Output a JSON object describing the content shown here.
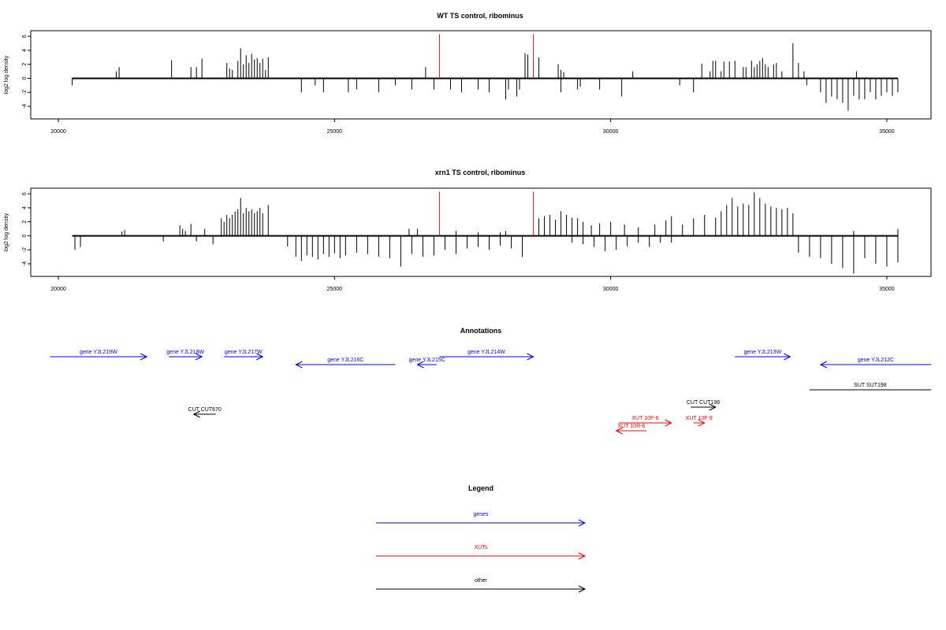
{
  "chart_data": [
    {
      "type": "bar",
      "title": "WT TS control, ribominus",
      "xlabel": "",
      "ylabel": "log2 log density",
      "xlim": [
        19500,
        35800
      ],
      "ylim": [
        -5.8,
        6.8
      ],
      "xticks": [
        20000,
        25000,
        30000,
        35000
      ],
      "yticks": [
        6,
        4,
        2,
        0,
        -2,
        -4
      ],
      "grid": false,
      "series": [
        {
          "values_plus": [
            [
              21050,
              1.0
            ],
            [
              21100,
              1.6
            ],
            [
              22050,
              2.6
            ],
            [
              22400,
              1.6
            ],
            [
              22500,
              1.6
            ],
            [
              22600,
              2.8
            ],
            [
              23050,
              2.2
            ],
            [
              23100,
              1.4
            ],
            [
              23150,
              1.2
            ],
            [
              23250,
              2.5
            ],
            [
              23300,
              4.3
            ],
            [
              23350,
              2.0
            ],
            [
              23400,
              3.3
            ],
            [
              23450,
              2.2
            ],
            [
              23500,
              3.5
            ],
            [
              23550,
              2.7
            ],
            [
              23600,
              2.9
            ],
            [
              23650,
              2.2
            ],
            [
              23700,
              2.8
            ],
            [
              23750,
              1.2
            ],
            [
              23800,
              3.0
            ],
            [
              26650,
              1.6
            ],
            [
              28450,
              3.6
            ],
            [
              28500,
              3.4
            ],
            [
              28600,
              2.4
            ],
            [
              28700,
              3.0
            ],
            [
              29050,
              2.0
            ],
            [
              29100,
              1.2
            ],
            [
              29150,
              0.9
            ],
            [
              30400,
              1.0
            ],
            [
              31650,
              2.1
            ],
            [
              31800,
              1.0
            ],
            [
              31850,
              2.5
            ],
            [
              31900,
              2.5
            ],
            [
              32000,
              1.0
            ],
            [
              32050,
              2.4
            ],
            [
              32150,
              2.4
            ],
            [
              32250,
              2.5
            ],
            [
              32400,
              1.6
            ],
            [
              32450,
              1.6
            ],
            [
              32550,
              2.5
            ],
            [
              32600,
              1.6
            ],
            [
              32650,
              2.0
            ],
            [
              32700,
              2.5
            ],
            [
              32750,
              2.9
            ],
            [
              32800,
              2.0
            ],
            [
              32850,
              1.6
            ],
            [
              32950,
              2.0
            ],
            [
              33000,
              2.2
            ],
            [
              33100,
              1.0
            ],
            [
              33300,
              5.0
            ],
            [
              33400,
              2.2
            ],
            [
              33500,
              1.0
            ],
            [
              34450,
              1.0
            ]
          ],
          "values_minus": [
            [
              20250,
              -1.0
            ],
            [
              24400,
              -2.0
            ],
            [
              24650,
              -1.0
            ],
            [
              24800,
              -2.0
            ],
            [
              25250,
              -2.0
            ],
            [
              25400,
              -1.6
            ],
            [
              25800,
              -2.0
            ],
            [
              26100,
              -1.0
            ],
            [
              26400,
              -1.6
            ],
            [
              26800,
              -1.6
            ],
            [
              27100,
              -1.6
            ],
            [
              27300,
              -2.0
            ],
            [
              27600,
              -1.6
            ],
            [
              27800,
              -2.0
            ],
            [
              28100,
              -3.0
            ],
            [
              28150,
              -1.6
            ],
            [
              28300,
              -2.6
            ],
            [
              28350,
              -1.6
            ],
            [
              29100,
              -2.0
            ],
            [
              29400,
              -1.6
            ],
            [
              29450,
              -1.2
            ],
            [
              29800,
              -1.6
            ],
            [
              30200,
              -2.6
            ],
            [
              31250,
              -1.0
            ],
            [
              31500,
              -2.0
            ],
            [
              33550,
              -1.0
            ],
            [
              33800,
              -2.0
            ],
            [
              33900,
              -3.5
            ],
            [
              34000,
              -2.6
            ],
            [
              34100,
              -3.0
            ],
            [
              34200,
              -3.5
            ],
            [
              34300,
              -4.6
            ],
            [
              34400,
              -2.5
            ],
            [
              34500,
              -3.0
            ],
            [
              34600,
              -3.0
            ],
            [
              34700,
              -2.0
            ],
            [
              34800,
              -3.0
            ],
            [
              34900,
              -2.5
            ],
            [
              35000,
              -2.0
            ],
            [
              35100,
              -2.5
            ],
            [
              35200,
              -2.0
            ]
          ]
        }
      ],
      "markers": [
        26900,
        28600
      ],
      "marker_color": "#e41a1c",
      "bar_color": "#000000"
    },
    {
      "type": "bar",
      "title": "xrn1 TS control, ribominus",
      "xlabel": "",
      "ylabel": "log2 log density",
      "xlim": [
        19500,
        35800
      ],
      "ylim": [
        -5.8,
        6.8
      ],
      "xticks": [
        20000,
        25000,
        30000,
        35000
      ],
      "yticks": [
        6,
        4,
        2,
        0,
        -2,
        -4
      ],
      "grid": false,
      "series": [
        {
          "values_plus": [
            [
              21150,
              0.6
            ],
            [
              21200,
              0.8
            ],
            [
              22200,
              1.5
            ],
            [
              22250,
              1.0
            ],
            [
              22300,
              0.7
            ],
            [
              22400,
              1.7
            ],
            [
              22650,
              1.0
            ],
            [
              22950,
              2.5
            ],
            [
              23000,
              2.0
            ],
            [
              23050,
              3.0
            ],
            [
              23100,
              2.5
            ],
            [
              23150,
              3.0
            ],
            [
              23200,
              3.5
            ],
            [
              23250,
              3.8
            ],
            [
              23300,
              5.4
            ],
            [
              23350,
              3.2
            ],
            [
              23400,
              4.0
            ],
            [
              23450,
              3.5
            ],
            [
              23500,
              3.8
            ],
            [
              23550,
              3.2
            ],
            [
              23600,
              3.5
            ],
            [
              23650,
              4.0
            ],
            [
              23700,
              3.2
            ],
            [
              23800,
              4.4
            ],
            [
              26350,
              1.0
            ],
            [
              26500,
              1.0
            ],
            [
              27200,
              0.7
            ],
            [
              27600,
              0.5
            ],
            [
              28000,
              0.5
            ],
            [
              28100,
              0.7
            ],
            [
              28700,
              2.5
            ],
            [
              28800,
              2.8
            ],
            [
              28900,
              3.0
            ],
            [
              29000,
              2.3
            ],
            [
              29100,
              3.5
            ],
            [
              29200,
              3.0
            ],
            [
              29300,
              2.6
            ],
            [
              29400,
              2.5
            ],
            [
              29500,
              2.0
            ],
            [
              29650,
              1.5
            ],
            [
              29800,
              1.8
            ],
            [
              30000,
              2.0
            ],
            [
              30250,
              1.6
            ],
            [
              30500,
              1.2
            ],
            [
              30800,
              1.6
            ],
            [
              31000,
              2.2
            ],
            [
              31100,
              2.8
            ],
            [
              31300,
              1.6
            ],
            [
              31500,
              2.5
            ],
            [
              31700,
              3.0
            ],
            [
              31900,
              2.6
            ],
            [
              32000,
              3.5
            ],
            [
              32100,
              4.4
            ],
            [
              32200,
              5.4
            ],
            [
              32300,
              4.2
            ],
            [
              32400,
              4.6
            ],
            [
              32500,
              4.4
            ],
            [
              32600,
              6.2
            ],
            [
              32700,
              5.4
            ],
            [
              32800,
              4.6
            ],
            [
              32900,
              4.2
            ],
            [
              33000,
              4.0
            ],
            [
              33100,
              3.8
            ],
            [
              33200,
              4.0
            ],
            [
              33300,
              3.2
            ],
            [
              34400,
              0.7
            ],
            [
              35200,
              1.0
            ]
          ],
          "values_minus": [
            [
              20300,
              -2.0
            ],
            [
              20400,
              -1.6
            ],
            [
              21900,
              -0.8
            ],
            [
              22500,
              -0.8
            ],
            [
              22800,
              -1.2
            ],
            [
              24150,
              -1.5
            ],
            [
              24300,
              -3.0
            ],
            [
              24400,
              -3.6
            ],
            [
              24500,
              -2.8
            ],
            [
              24600,
              -3.0
            ],
            [
              24700,
              -3.4
            ],
            [
              24800,
              -2.6
            ],
            [
              24900,
              -3.0
            ],
            [
              25000,
              -2.5
            ],
            [
              25100,
              -3.2
            ],
            [
              25200,
              -2.8
            ],
            [
              25400,
              -2.4
            ],
            [
              25600,
              -2.6
            ],
            [
              25800,
              -3.0
            ],
            [
              26000,
              -3.2
            ],
            [
              26200,
              -4.4
            ],
            [
              26400,
              -2.6
            ],
            [
              26600,
              -3.0
            ],
            [
              26800,
              -2.8
            ],
            [
              27000,
              -2.0
            ],
            [
              27200,
              -2.6
            ],
            [
              27400,
              -1.8
            ],
            [
              27600,
              -1.6
            ],
            [
              27800,
              -2.0
            ],
            [
              28000,
              -1.4
            ],
            [
              28200,
              -1.8
            ],
            [
              28400,
              -3.0
            ],
            [
              29300,
              -1.0
            ],
            [
              29500,
              -1.2
            ],
            [
              29700,
              -1.6
            ],
            [
              29900,
              -2.2
            ],
            [
              30100,
              -2.0
            ],
            [
              30300,
              -1.5
            ],
            [
              30500,
              -1.0
            ],
            [
              30700,
              -1.6
            ],
            [
              30900,
              -1.0
            ],
            [
              31100,
              -1.0
            ],
            [
              33400,
              -2.4
            ],
            [
              33600,
              -3.0
            ],
            [
              33800,
              -3.2
            ],
            [
              34000,
              -4.0
            ],
            [
              34200,
              -4.6
            ],
            [
              34400,
              -5.4
            ],
            [
              34600,
              -3.2
            ],
            [
              34800,
              -4.0
            ],
            [
              35000,
              -4.4
            ],
            [
              35200,
              -3.8
            ]
          ]
        }
      ],
      "markers": [
        26900,
        28600
      ],
      "marker_color": "#e41a1c",
      "bar_color": "#000000"
    }
  ],
  "annotations": {
    "title": "Annotations",
    "items": [
      {
        "label": "gene YJL219W",
        "color": "#0000ff",
        "dir": "right",
        "x1": 19850,
        "x2": 21600,
        "row": 0,
        "label_pos": "above"
      },
      {
        "label": "gene YJL218W",
        "color": "#0000ff",
        "dir": "right",
        "x1": 22000,
        "x2": 22600,
        "row": 0,
        "label_pos": "above"
      },
      {
        "label": "gene YJL217W",
        "color": "#0000ff",
        "dir": "right",
        "x1": 23000,
        "x2": 23700,
        "row": 0,
        "label_pos": "above"
      },
      {
        "label": "gene YJL216C",
        "color": "#0000ff",
        "dir": "left",
        "x1": 24300,
        "x2": 26100,
        "row": 1,
        "label_pos": "above"
      },
      {
        "label": "gene YJL215C",
        "color": "#0000ff",
        "dir": "left",
        "x1": 26500,
        "x2": 26850,
        "row": 1,
        "label_pos": "above"
      },
      {
        "label": "gene YJL214W",
        "color": "#0000ff",
        "dir": "right",
        "x1": 26900,
        "x2": 28600,
        "row": 0,
        "label_pos": "above"
      },
      {
        "label": "gene YJL213W",
        "color": "#0000ff",
        "dir": "right",
        "x1": 32250,
        "x2": 33250,
        "row": 0,
        "label_pos": "above"
      },
      {
        "label": "gene YJL212C",
        "color": "#0000ff",
        "dir": "left",
        "x1": 33800,
        "x2": 35850,
        "row": 1,
        "label_pos": "above"
      },
      {
        "label": "SUT SUT198",
        "color": "#000000",
        "dir": "none",
        "x1": 33600,
        "x2": 35850,
        "row": 2,
        "label_pos": "above"
      },
      {
        "label": "CUT CUT670",
        "color": "#000000",
        "dir": "left",
        "x1": 22450,
        "x2": 22850,
        "row": 3,
        "label_pos": "above"
      },
      {
        "label": "CUT CUT196",
        "color": "#000000",
        "dir": "right",
        "x1": 31450,
        "x2": 31900,
        "row": 4,
        "label_pos": "above"
      },
      {
        "label": "XUT 10F-6",
        "color": "#ff0000",
        "dir": "right",
        "x1": 30150,
        "x2": 31100,
        "row": 5,
        "label_pos": "above"
      },
      {
        "label": "XUT 10F-9",
        "color": "#ff0000",
        "dir": "right",
        "x1": 31500,
        "x2": 31700,
        "row": 5,
        "label_pos": "above"
      },
      {
        "label": "XUT 10R-6",
        "color": "#ff0000",
        "dir": "left",
        "x1": 30100,
        "x2": 30650,
        "row": 6,
        "label_pos": "above"
      }
    ]
  },
  "legend": {
    "title": "Legend",
    "items": [
      {
        "label": "genes",
        "color": "#0000ff"
      },
      {
        "label": "XUTs",
        "color": "#ff0000"
      },
      {
        "label": "other",
        "color": "#000000"
      }
    ]
  }
}
